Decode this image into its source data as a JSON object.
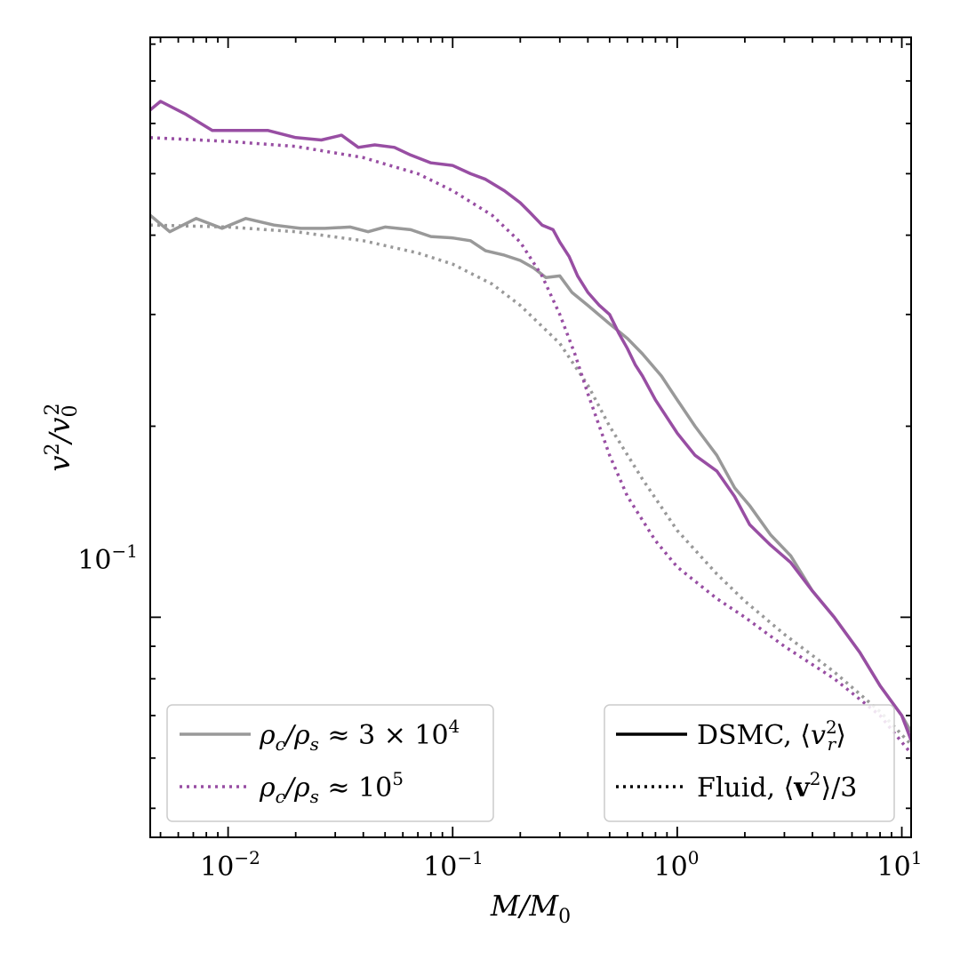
{
  "chart_data": {
    "type": "line",
    "xscale": "log",
    "yscale": "log",
    "xlim": [
      0.0045,
      11
    ],
    "ylim": [
      0.045,
      0.82
    ],
    "xlabel": "M/M0",
    "ylabel": "v^2/v0^2",
    "x_tick_labels": [
      "10^-2",
      "10^-1",
      "10^0",
      "10^1"
    ],
    "y_tick_labels": [
      "10^-1"
    ],
    "series": [
      {
        "name": "DSMC, ρc/ρs ≈ 3 × 10^4",
        "color": "#999999",
        "style": "solid",
        "x": [
          0.0045,
          0.0055,
          0.0072,
          0.0094,
          0.012,
          0.016,
          0.021,
          0.027,
          0.035,
          0.042,
          0.05,
          0.065,
          0.08,
          0.1,
          0.12,
          0.14,
          0.17,
          0.2,
          0.23,
          0.26,
          0.3,
          0.34,
          0.4,
          0.5,
          0.6,
          0.7,
          0.85,
          1.0,
          1.2,
          1.5,
          1.8,
          2.1,
          2.6,
          3.2,
          4.0,
          5.0,
          6.5,
          8.0,
          10.0,
          11.0
        ],
        "y": [
          0.43,
          0.405,
          0.425,
          0.41,
          0.425,
          0.415,
          0.41,
          0.41,
          0.412,
          0.405,
          0.412,
          0.408,
          0.398,
          0.396,
          0.392,
          0.378,
          0.372,
          0.365,
          0.355,
          0.343,
          0.345,
          0.325,
          0.31,
          0.29,
          0.275,
          0.26,
          0.24,
          0.22,
          0.2,
          0.18,
          0.16,
          0.15,
          0.135,
          0.125,
          0.11,
          0.1,
          0.088,
          0.078,
          0.07,
          0.066
        ]
      },
      {
        "name": "Fluid, ρc/ρs ≈ 3 × 10^4",
        "color": "#999999",
        "style": "dotted",
        "x": [
          0.0045,
          0.01,
          0.02,
          0.04,
          0.07,
          0.1,
          0.15,
          0.2,
          0.3,
          0.4,
          0.5,
          0.7,
          1.0,
          1.5,
          2.0,
          3.0,
          5.0,
          8.0,
          11.0
        ],
        "y": [
          0.415,
          0.412,
          0.405,
          0.392,
          0.375,
          0.36,
          0.335,
          0.31,
          0.27,
          0.232,
          0.2,
          0.165,
          0.137,
          0.117,
          0.106,
          0.094,
          0.082,
          0.071,
          0.063
        ]
      },
      {
        "name": "DSMC, ρc/ρs ≈ 10^5",
        "color": "#984ea3",
        "style": "solid",
        "x": [
          0.0045,
          0.005,
          0.0065,
          0.0085,
          0.011,
          0.015,
          0.02,
          0.026,
          0.032,
          0.038,
          0.045,
          0.055,
          0.065,
          0.08,
          0.1,
          0.12,
          0.14,
          0.17,
          0.2,
          0.22,
          0.25,
          0.28,
          0.3,
          0.33,
          0.36,
          0.4,
          0.45,
          0.5,
          0.55,
          0.6,
          0.65,
          0.7,
          0.8,
          1.0,
          1.2,
          1.5,
          1.8,
          2.1,
          2.6,
          3.2,
          4.0,
          5.0,
          6.5,
          8.0,
          10.0,
          11.0
        ],
        "y": [
          0.63,
          0.65,
          0.62,
          0.585,
          0.585,
          0.585,
          0.57,
          0.565,
          0.575,
          0.55,
          0.555,
          0.55,
          0.535,
          0.52,
          0.515,
          0.5,
          0.49,
          0.47,
          0.45,
          0.435,
          0.415,
          0.408,
          0.39,
          0.37,
          0.345,
          0.325,
          0.31,
          0.3,
          0.28,
          0.265,
          0.25,
          0.24,
          0.22,
          0.195,
          0.18,
          0.17,
          0.155,
          0.14,
          0.13,
          0.122,
          0.11,
          0.1,
          0.088,
          0.078,
          0.07,
          0.064
        ]
      },
      {
        "name": "Fluid, ρc/ρs ≈ 10^5",
        "color": "#984ea3",
        "style": "dotted",
        "x": [
          0.0045,
          0.01,
          0.02,
          0.04,
          0.07,
          0.1,
          0.15,
          0.2,
          0.25,
          0.3,
          0.35,
          0.4,
          0.5,
          0.6,
          0.8,
          1.0,
          1.5,
          2.0,
          3.0,
          5.0,
          8.0,
          11.0
        ],
        "y": [
          0.57,
          0.562,
          0.552,
          0.53,
          0.5,
          0.47,
          0.43,
          0.39,
          0.345,
          0.3,
          0.26,
          0.225,
          0.18,
          0.155,
          0.132,
          0.12,
          0.107,
          0.1,
          0.09,
          0.08,
          0.07,
          0.061
        ]
      }
    ],
    "legend_left": {
      "position": "bottom-left",
      "entries": [
        {
          "label": "ρc/ρs ≈ 3 × 10^4",
          "color": "#999999",
          "style": "solid"
        },
        {
          "label": "ρc/ρs ≈ 10^5",
          "color": "#984ea3",
          "style": "dotted"
        }
      ]
    },
    "legend_right": {
      "position": "bottom-right",
      "entries": [
        {
          "label": "DSMC, ⟨v_r^2⟩",
          "color": "#000000",
          "style": "solid"
        },
        {
          "label": "Fluid, ⟨v^2⟩/3",
          "color": "#000000",
          "style": "dotted"
        }
      ]
    }
  }
}
